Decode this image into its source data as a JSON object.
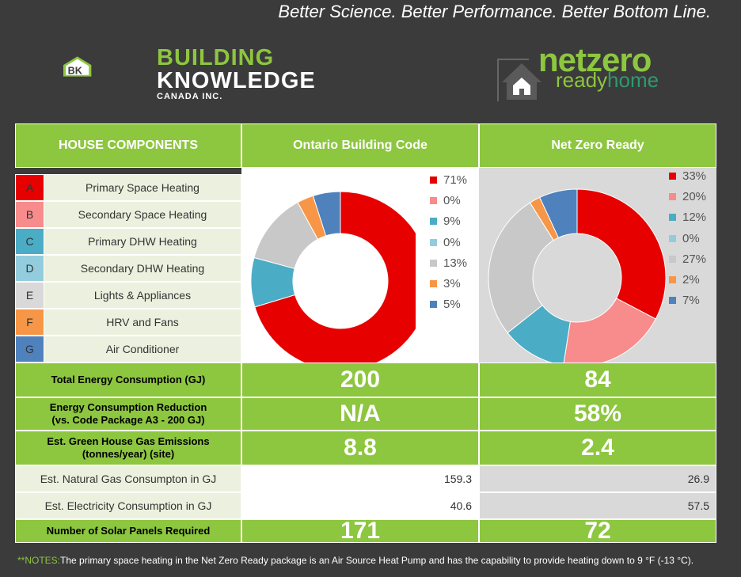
{
  "header": {
    "tagline": "Better Science. Better Performance. Better Bottom Line.",
    "bk_logo": {
      "line1": "BUILDING",
      "line2": "KNOWLEDGE",
      "line3": "CANADA INC."
    },
    "nz_logo": {
      "line1": "netzero",
      "line2a": "ready",
      "line2b": "home"
    }
  },
  "columns": {
    "components": "HOUSE COMPONENTS",
    "obc": "Ontario Building Code",
    "nzr": "Net Zero Ready"
  },
  "components": [
    {
      "letter": "A",
      "label": "Primary Space Heating",
      "color": "#e60000"
    },
    {
      "letter": "B",
      "label": "Secondary Space Heating",
      "color": "#f88b8b"
    },
    {
      "letter": "C",
      "label": "Primary DHW Heating",
      "color": "#4bacc6"
    },
    {
      "letter": "D",
      "label": "Secondary DHW Heating",
      "color": "#93cddd"
    },
    {
      "letter": "E",
      "label": "Lights & Appliances",
      "color": "#d9d9d9"
    },
    {
      "letter": "F",
      "label": "HRV and Fans",
      "color": "#f79646"
    },
    {
      "letter": "G",
      "label": "Air Conditioner",
      "color": "#4f81bd"
    }
  ],
  "chart_data": [
    {
      "type": "pie",
      "variant": "donut",
      "categories": [
        "A",
        "B",
        "C",
        "D",
        "E",
        "F",
        "G"
      ],
      "values": [
        71,
        0,
        9,
        0,
        13,
        3,
        5
      ],
      "labels": [
        "71%",
        "0%",
        "9%",
        "0%",
        "13%",
        "3%",
        "5%"
      ],
      "colors": [
        "#e60000",
        "#f88b8b",
        "#4bacc6",
        "#93cddd",
        "#c8c8c8",
        "#f79646",
        "#4f81bd"
      ],
      "legend": "right"
    },
    {
      "type": "pie",
      "variant": "donut",
      "categories": [
        "A",
        "B",
        "C",
        "D",
        "E",
        "F",
        "G"
      ],
      "values": [
        33,
        20,
        12,
        0,
        27,
        2,
        7
      ],
      "labels": [
        "33%",
        "20%",
        "12%",
        "0%",
        "27%",
        "2%",
        "7%"
      ],
      "colors": [
        "#e60000",
        "#f88b8b",
        "#4bacc6",
        "#93cddd",
        "#c8c8c8",
        "#f79646",
        "#4f81bd"
      ],
      "legend": "right"
    }
  ],
  "rows": [
    {
      "label": "Total Energy Consumption (GJ)",
      "obc": "200",
      "nzr": "84"
    },
    {
      "label1": "Energy Consumption Reduction",
      "label2": "(vs. Code Package A3 - 200 GJ)",
      "obc": "N/A",
      "nzr": "58%"
    },
    {
      "label1": "Est. Green House Gas Emissions",
      "label2": "(tonnes/year) (site)",
      "obc": "8.8",
      "nzr": "2.4"
    },
    {
      "label": "Est. Natural Gas Consumpton in GJ",
      "obc": "159.3",
      "nzr": "26.9"
    },
    {
      "label": "Est. Electricity Consumption in GJ",
      "obc": "40.6",
      "nzr": "57.5"
    },
    {
      "label": "Number of Solar Panels Required",
      "obc": "171",
      "nzr": "72"
    }
  ],
  "notes": {
    "tag": "**NOTES:",
    "text": "The primary space heating in the Net Zero Ready package is an Air Source Heat Pump and has the capability to provide heating down to 9 °F (-13 °C)."
  }
}
